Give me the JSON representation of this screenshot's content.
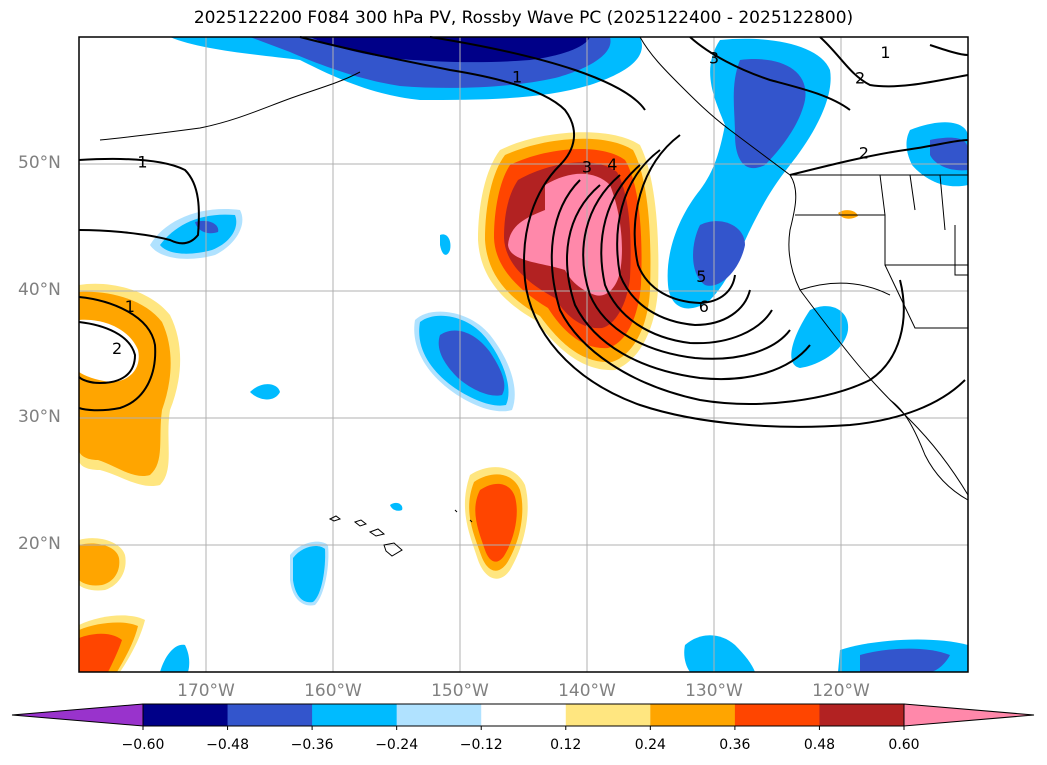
{
  "title": "2025122200 F084 300 hPa PV, Rossby Wave PC (2025122400 - 2025122800)",
  "map": {
    "lon_range": [
      -180,
      -110
    ],
    "lat_range": [
      10,
      60
    ],
    "lat_labels": [
      {
        "lat": 50,
        "text": "50°N"
      },
      {
        "lat": 40,
        "text": "40°N"
      },
      {
        "lat": 30,
        "text": "30°N"
      },
      {
        "lat": 20,
        "text": "20°N"
      }
    ],
    "lon_labels": [
      {
        "lon": -170,
        "text": "170°W"
      },
      {
        "lon": -160,
        "text": "160°W"
      },
      {
        "lon": -150,
        "text": "150°W"
      },
      {
        "lon": -140,
        "text": "140°W"
      },
      {
        "lon": -130,
        "text": "130°W"
      },
      {
        "lon": -120,
        "text": "120°W"
      }
    ],
    "contour_labels": [
      {
        "lon": -175,
        "lat": 50.2,
        "text": "1"
      },
      {
        "lon": -176,
        "lat": 38.8,
        "text": "1"
      },
      {
        "lon": -177,
        "lat": 35.5,
        "text": "2"
      },
      {
        "lon": -145.5,
        "lat": 56.9,
        "text": "1"
      },
      {
        "lon": -140,
        "lat": 49.8,
        "text": "3"
      },
      {
        "lon": -138,
        "lat": 50.0,
        "text": "4"
      },
      {
        "lon": -131,
        "lat": 41.2,
        "text": "5"
      },
      {
        "lon": -130.8,
        "lat": 38.8,
        "text": "6"
      },
      {
        "lon": -130,
        "lat": 58.4,
        "text": "3"
      },
      {
        "lon": -118.5,
        "lat": 56.8,
        "text": "2"
      },
      {
        "lon": -116.5,
        "lat": 58.8,
        "text": "1"
      },
      {
        "lon": -118.2,
        "lat": 50.9,
        "text": "2"
      }
    ]
  },
  "colorbar": {
    "levels": [
      -0.6,
      -0.48,
      -0.36,
      -0.24,
      -0.12,
      0.12,
      0.24,
      0.36,
      0.48,
      0.6
    ],
    "tick_labels": [
      "−0.60",
      "−0.48",
      "−0.36",
      "−0.24",
      "−0.12",
      "0.12",
      "0.24",
      "0.36",
      "0.48",
      "0.60"
    ],
    "colors": [
      "#9933cc",
      "#000088",
      "#3355cc",
      "#00bbff",
      "#b0e2ff",
      "#ffffff",
      "#ffe680",
      "#ffa500",
      "#ff4500",
      "#b22222",
      "#ff88aa"
    ],
    "extend": "both"
  },
  "colors": {
    "dark_blue": "#000088",
    "medium_blue": "#3355cc",
    "cyan": "#00bbff",
    "light_blue": "#b0e2ff",
    "light_yellow": "#ffe680",
    "orange": "#ffa500",
    "red_orange": "#ff4500",
    "dark_red": "#b22222",
    "pink": "#ff88aa",
    "grid": "#b0b0b0",
    "axis_label": "#808080"
  }
}
